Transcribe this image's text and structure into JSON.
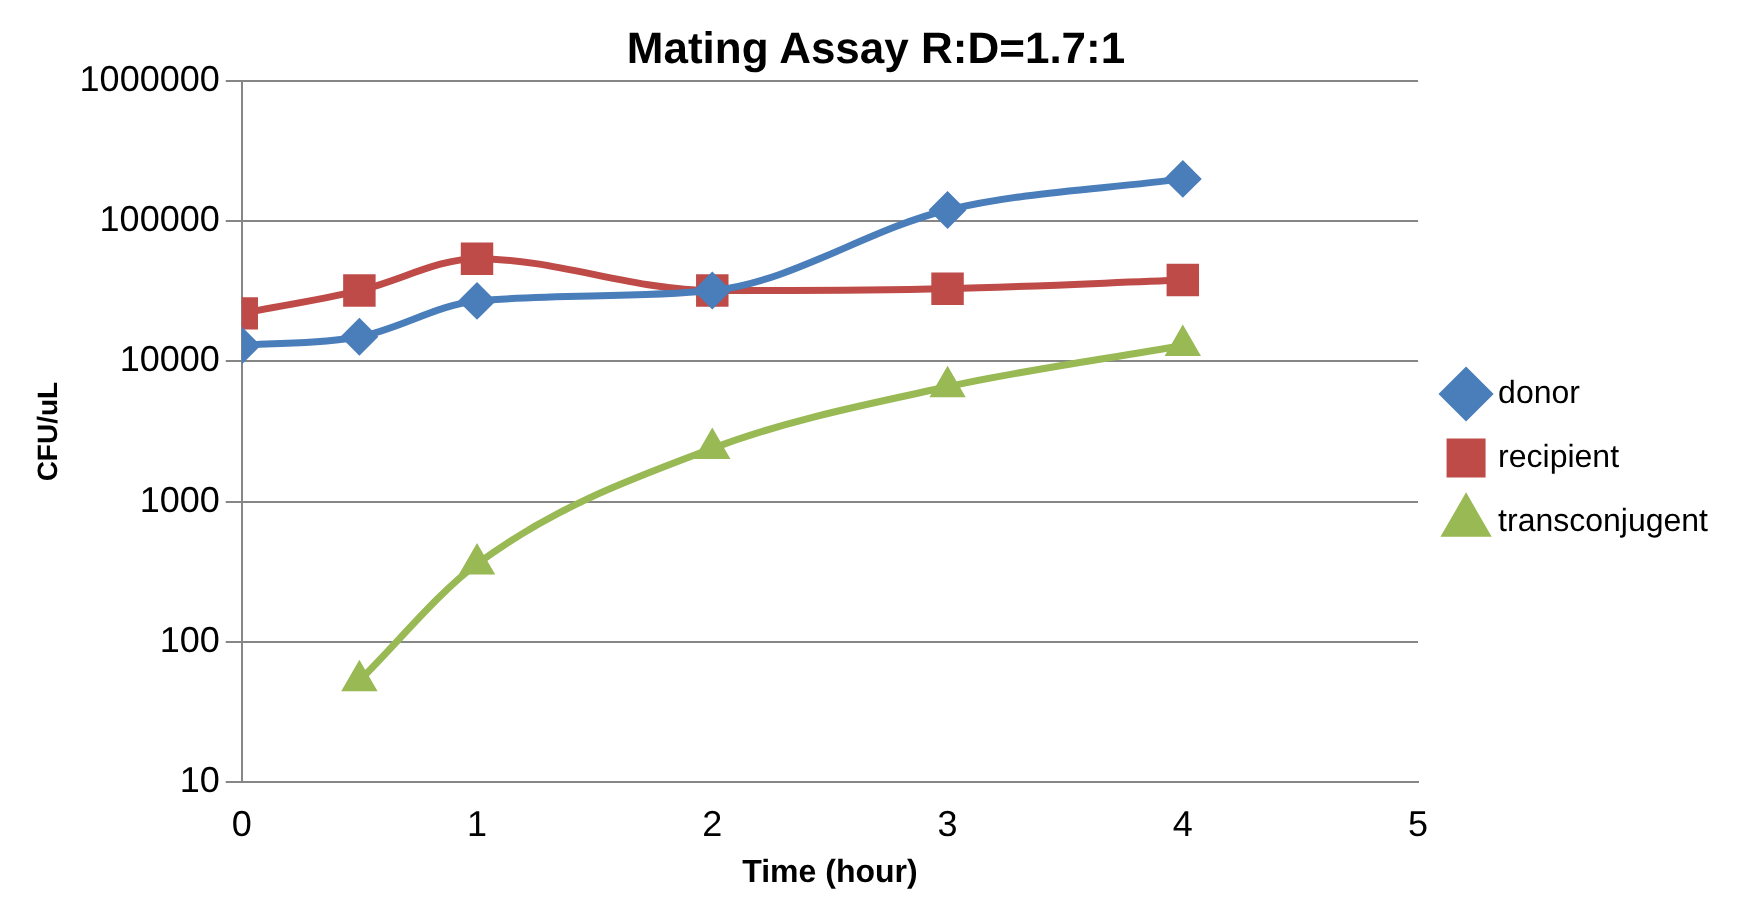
{
  "chart_data": {
    "type": "line",
    "title": "Mating Assay R:D=1.7:1",
    "xlabel": "Time (hour)",
    "ylabel": "CFU/uL",
    "log": "y",
    "grid": "y",
    "legend": "right",
    "xlim": [
      0,
      5
    ],
    "xticks": [
      0,
      1,
      2,
      3,
      4,
      5
    ],
    "ylim": [
      10,
      1000000
    ],
    "yticks": [
      10,
      100,
      1000,
      10000,
      100000,
      1000000
    ],
    "series": [
      {
        "name": "donor",
        "color": "#4a7ebb",
        "marker": "diamond",
        "x": [
          0,
          0.5,
          1,
          2,
          3,
          4
        ],
        "values": [
          13000,
          15000,
          27000,
          32000,
          120000,
          200000
        ]
      },
      {
        "name": "recipient",
        "color": "#be4b48",
        "marker": "square",
        "x": [
          0,
          0.5,
          1,
          2,
          3,
          4
        ],
        "values": [
          22000,
          32000,
          54000,
          32000,
          33000,
          38000
        ]
      },
      {
        "name": "transconjugent",
        "color": "#98b954",
        "marker": "triangle",
        "x": [
          0.5,
          1,
          2,
          3,
          4
        ],
        "values": [
          53,
          360,
          2400,
          6600,
          13000
        ]
      }
    ]
  }
}
